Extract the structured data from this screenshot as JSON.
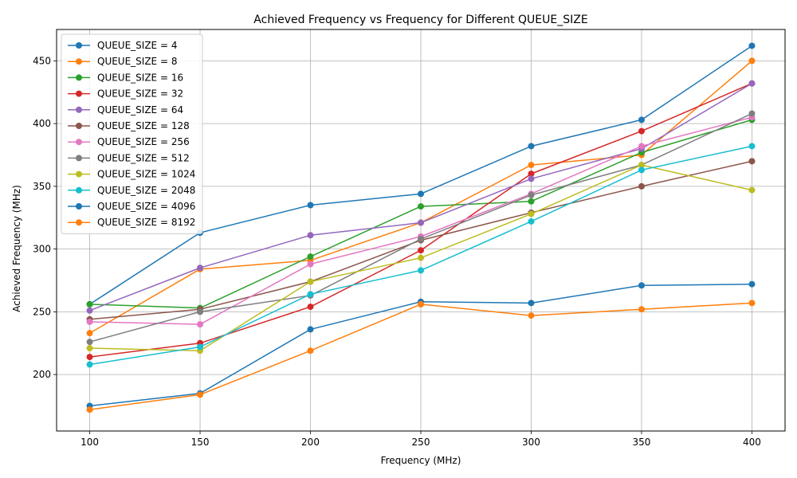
{
  "chart_data": {
    "type": "line",
    "title": "Achieved Frequency vs Frequency for Different QUEUE_SIZE",
    "xlabel": "Frequency (MHz)",
    "ylabel": "Achieved Frequency (MHz)",
    "x": [
      100,
      150,
      200,
      250,
      300,
      350,
      400
    ],
    "xticks": [
      100,
      150,
      200,
      250,
      300,
      350,
      400
    ],
    "yticks": [
      200,
      250,
      300,
      350,
      400,
      450
    ],
    "xlim": [
      85,
      415
    ],
    "ylim": [
      155,
      475
    ],
    "grid": true,
    "legend_position": "top-left",
    "series": [
      {
        "name": "QUEUE_SIZE = 4",
        "color": "#1f77b4",
        "values": [
          256,
          313,
          335,
          344,
          382,
          403,
          462
        ]
      },
      {
        "name": "QUEUE_SIZE = 8",
        "color": "#ff7f0e",
        "values": [
          233,
          284,
          291,
          321,
          367,
          375,
          450
        ]
      },
      {
        "name": "QUEUE_SIZE = 16",
        "color": "#2ca02c",
        "values": [
          256,
          253,
          294,
          334,
          338,
          377,
          403
        ]
      },
      {
        "name": "QUEUE_SIZE = 32",
        "color": "#d62728",
        "values": [
          214,
          225,
          254,
          299,
          360,
          394,
          432
        ]
      },
      {
        "name": "QUEUE_SIZE = 64",
        "color": "#9467bd",
        "values": [
          251,
          285,
          311,
          321,
          356,
          380,
          432
        ]
      },
      {
        "name": "QUEUE_SIZE = 128",
        "color": "#8c564b",
        "values": [
          244,
          252,
          274,
          307,
          329,
          350,
          370
        ]
      },
      {
        "name": "QUEUE_SIZE = 256",
        "color": "#e377c2",
        "values": [
          242,
          240,
          288,
          310,
          344,
          382,
          405
        ]
      },
      {
        "name": "QUEUE_SIZE = 512",
        "color": "#7f7f7f",
        "values": [
          226,
          250,
          263,
          308,
          343,
          367,
          408
        ]
      },
      {
        "name": "QUEUE_SIZE = 1024",
        "color": "#bcbd22",
        "values": [
          221,
          219,
          274,
          293,
          328,
          367,
          347
        ]
      },
      {
        "name": "QUEUE_SIZE = 2048",
        "color": "#17becf",
        "values": [
          208,
          222,
          264,
          283,
          322,
          363,
          382
        ]
      },
      {
        "name": "QUEUE_SIZE = 4096",
        "color": "#1f77b4",
        "values": [
          175,
          185,
          236,
          258,
          257,
          271,
          272
        ]
      },
      {
        "name": "QUEUE_SIZE = 8192",
        "color": "#ff7f0e",
        "values": [
          172,
          184,
          219,
          256,
          247,
          252,
          257
        ]
      }
    ]
  }
}
